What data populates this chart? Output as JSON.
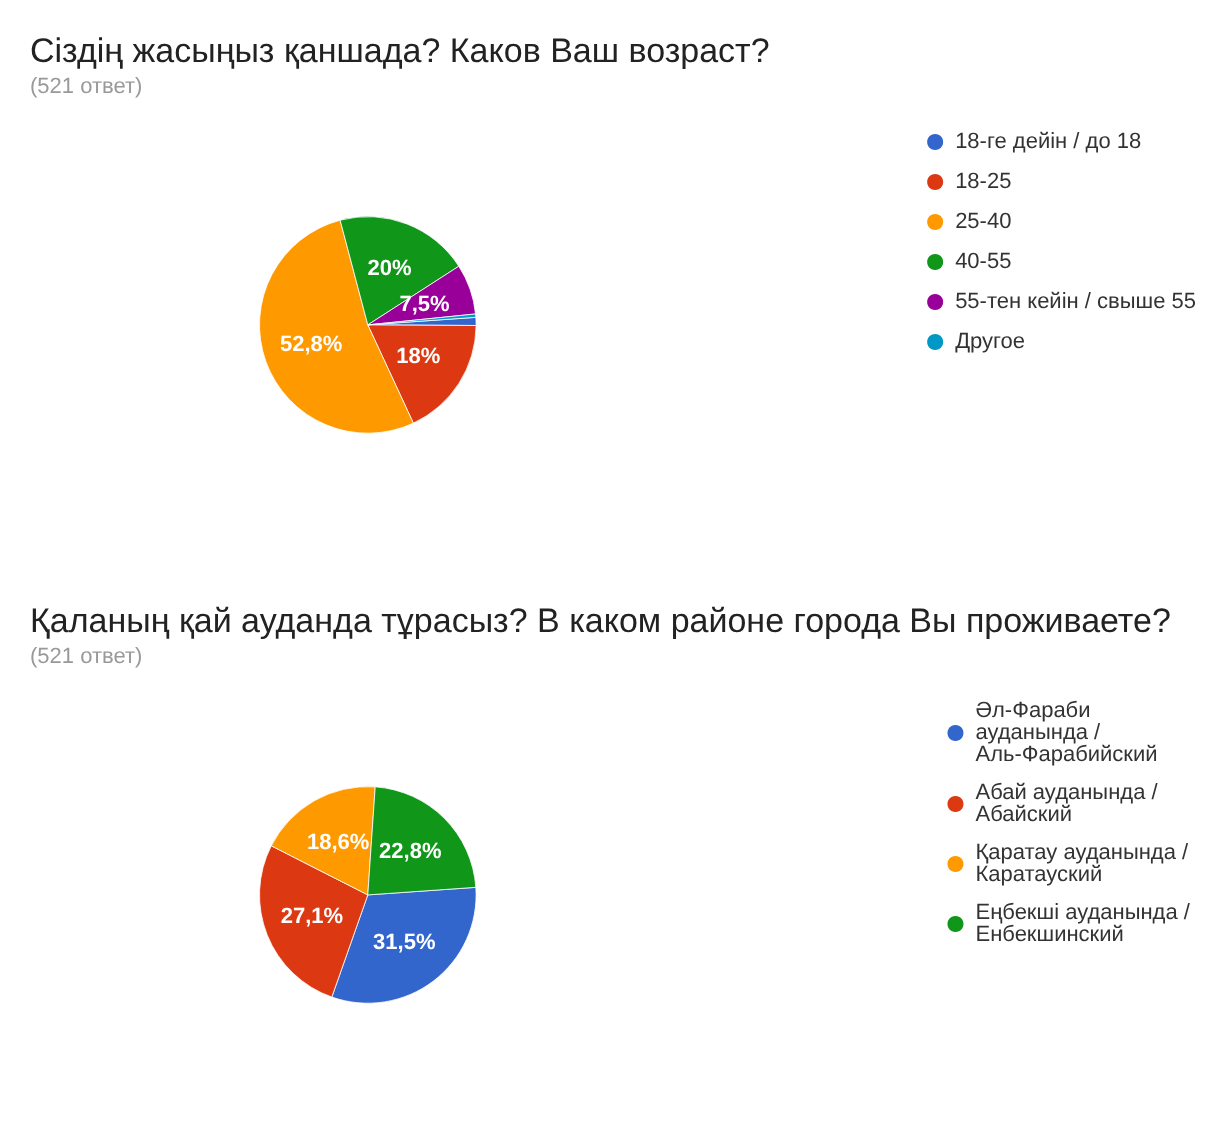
{
  "chart_data": [
    {
      "type": "pie",
      "title": "Сіздің жасыңыз қаншада? Каков Ваш возраст?",
      "subtitle": "(521 ответ)",
      "legend": "right",
      "categories": [
        "18-ге дейін / до 18",
        "18-25",
        "25-40",
        "40-55",
        "55-тен кейін / свыше 55",
        "Другое"
      ],
      "values": [
        1.2,
        18,
        52.8,
        20,
        7.5,
        0.5
      ],
      "colors": [
        "#3366cc",
        "#dc3912",
        "#ff9900",
        "#109618",
        "#990099",
        "#0099c6"
      ],
      "value_labels": [
        null,
        "18%",
        "52,8%",
        "20%",
        "7,5%",
        null
      ]
    },
    {
      "type": "pie",
      "title": "Қаланың қай ауданда тұрасыз? В каком районе города Вы проживаете?",
      "subtitle": "(521 ответ)",
      "legend": "right",
      "categories": [
        "Әл-Фараби ауданында /Аль-Фарабийский",
        "Абай ауданында /Абайский",
        "Қаратау ауданында / Каратауский",
        "Еңбекші ауданында / Енбекшинский"
      ],
      "values": [
        31.5,
        27.1,
        18.6,
        22.8
      ],
      "colors": [
        "#3366cc",
        "#dc3912",
        "#ff9900",
        "#109618"
      ],
      "value_labels": [
        "31,5%",
        "27,1%",
        "18,6%",
        "22,8%"
      ]
    }
  ]
}
